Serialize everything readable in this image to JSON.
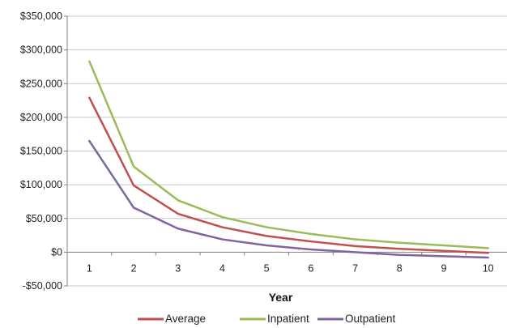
{
  "chart_data": {
    "type": "line",
    "title": "",
    "xlabel": "Year",
    "ylabel": "",
    "x": [
      1,
      2,
      3,
      4,
      5,
      6,
      7,
      8,
      9,
      10
    ],
    "ylim": [
      -50000,
      350000
    ],
    "y_ticks": [
      -50000,
      0,
      50000,
      100000,
      150000,
      200000,
      250000,
      300000,
      350000
    ],
    "y_tick_labels": [
      "-$50,000",
      "$0",
      "$50,000",
      "$100,000",
      "$150,000",
      "$200,000",
      "$250,000",
      "$300,000",
      "$350,000"
    ],
    "x_tick_labels": [
      "1",
      "2",
      "3",
      "4",
      "5",
      "6",
      "7",
      "8",
      "9",
      "10"
    ],
    "grid": true,
    "legend_position": "bottom",
    "series": [
      {
        "name": "Average",
        "color": "#c0504d",
        "values": [
          229000,
          99000,
          57000,
          37000,
          24000,
          16000,
          9000,
          5000,
          2000,
          -1000
        ]
      },
      {
        "name": "Inpatient",
        "color": "#9bbb59",
        "values": [
          283000,
          127000,
          77000,
          52000,
          37000,
          27000,
          19000,
          14000,
          10000,
          6000
        ]
      },
      {
        "name": "Outpatient",
        "color": "#8064a2",
        "values": [
          165000,
          66000,
          35000,
          19000,
          10000,
          4000,
          0,
          -4000,
          -6000,
          -8000
        ]
      }
    ]
  }
}
